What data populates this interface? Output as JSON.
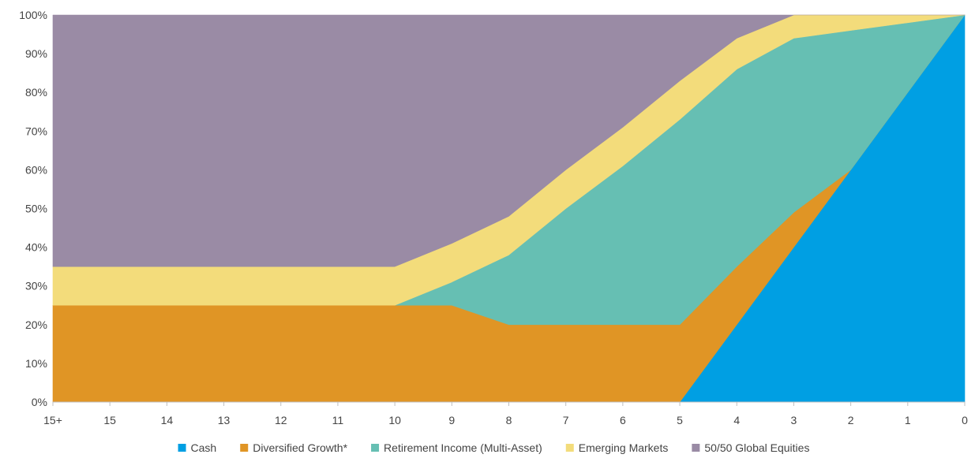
{
  "chart_data": {
    "type": "area",
    "stacked": true,
    "percent_stacked": true,
    "title": "",
    "xlabel": "",
    "ylabel": "",
    "categories": [
      "15+",
      "15",
      "14",
      "13",
      "12",
      "11",
      "10",
      "9",
      "8",
      "7",
      "6",
      "5",
      "4",
      "3",
      "2",
      "1",
      "0"
    ],
    "ylim": [
      0,
      100
    ],
    "yticks": [
      "0%",
      "10%",
      "20%",
      "30%",
      "40%",
      "50%",
      "60%",
      "70%",
      "80%",
      "90%",
      "100%"
    ],
    "grid": false,
    "legend_position": "bottom",
    "series": [
      {
        "name": "Cash",
        "color": "#009fe3",
        "values": [
          0,
          0,
          0,
          0,
          0,
          0,
          0,
          0,
          0,
          0,
          0,
          0,
          20,
          40,
          60,
          80,
          100
        ]
      },
      {
        "name": "Diversified Growth*",
        "color": "#e09525",
        "values": [
          25,
          25,
          25,
          25,
          25,
          25,
          25,
          25,
          20,
          20,
          20,
          20,
          15,
          9,
          0,
          0,
          0
        ]
      },
      {
        "name": "Retirement Income (Multi-Asset)",
        "color": "#66bfb3",
        "values": [
          0,
          0,
          0,
          0,
          0,
          0,
          0,
          6,
          18,
          30,
          41,
          53,
          51,
          45,
          36,
          18,
          0
        ]
      },
      {
        "name": "Emerging Markets",
        "color": "#f3dc7b",
        "values": [
          10,
          10,
          10,
          10,
          10,
          10,
          10,
          10,
          10,
          10,
          10,
          10,
          8,
          6,
          4,
          2,
          0
        ]
      },
      {
        "name": "50/50 Global Equities",
        "color": "#9a8ba5",
        "values": [
          65,
          65,
          65,
          65,
          65,
          65,
          65,
          59,
          52,
          40,
          29,
          17,
          6,
          0,
          0,
          0,
          0
        ]
      }
    ]
  }
}
